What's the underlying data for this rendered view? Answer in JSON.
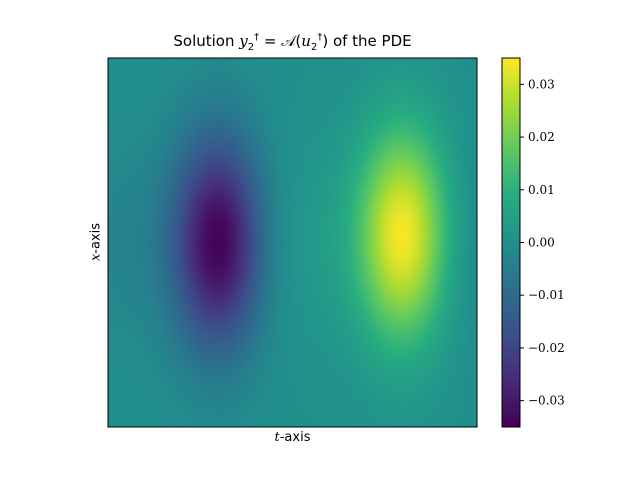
{
  "chart_data": {
    "type": "heatmap",
    "title": {
      "prefix": "Solution ",
      "math_a": "y",
      "math_b": "2",
      "math_c": "†",
      "math_mid": " = 𝒜(",
      "math_d": "u",
      "math_e": "2",
      "math_f": "†",
      "math_end": ")",
      "suffix": " of the PDE"
    },
    "xlabel": {
      "var": "t",
      "text": "-axis"
    },
    "ylabel": {
      "var": "x",
      "text": "-axis"
    },
    "colormap": "viridis",
    "value_range": [
      -0.035,
      0.035
    ],
    "colorbar_ticks": [
      {
        "value": 0.03,
        "label": "0.03"
      },
      {
        "value": 0.02,
        "label": "0.02"
      },
      {
        "value": 0.01,
        "label": "0.01"
      },
      {
        "value": 0.0,
        "label": "0.00"
      },
      {
        "value": -0.01,
        "label": "−0.01"
      },
      {
        "value": -0.02,
        "label": "−0.02"
      },
      {
        "value": -0.03,
        "label": "−0.03"
      }
    ],
    "field": {
      "t_range": [
        0,
        1
      ],
      "x_range": [
        0,
        1
      ],
      "features": [
        {
          "kind": "minimum",
          "t": 0.3,
          "x": 0.5,
          "value": -0.035
        },
        {
          "kind": "maximum",
          "t": 0.8,
          "x": 0.52,
          "value": 0.035
        }
      ]
    },
    "axis_ticks_visible": false,
    "grid": false
  }
}
